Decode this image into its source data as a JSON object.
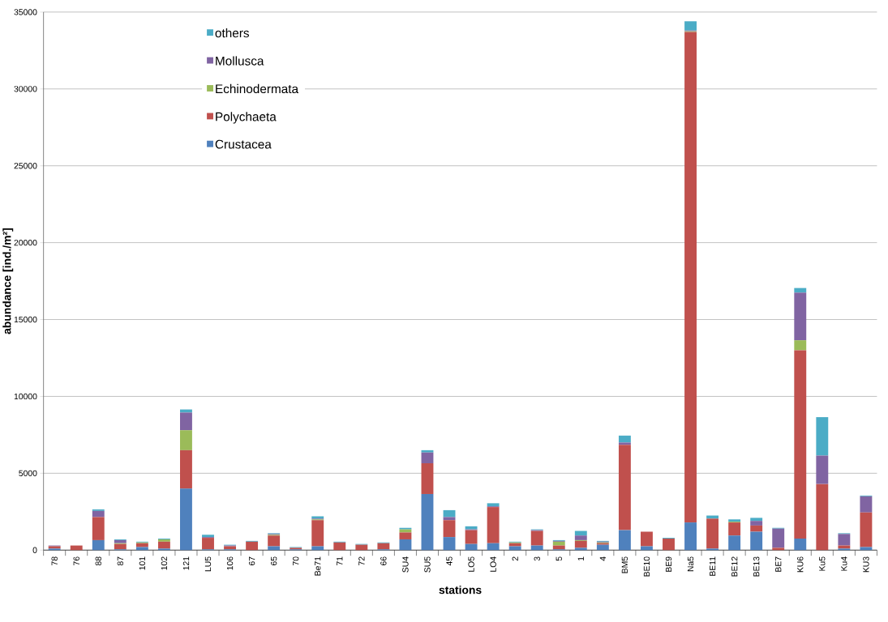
{
  "chart_data": {
    "type": "bar",
    "stacked": true,
    "xlabel": "stations",
    "ylabel": "abundance [ind./m²]",
    "categories": [
      "78",
      "76",
      "88",
      "87",
      "101",
      "102",
      "121",
      "LU5",
      "106",
      "67",
      "65",
      "70",
      "Be71",
      "71",
      "72",
      "66",
      "SU4",
      "SU5",
      "45",
      "LO5",
      "LO4",
      "2",
      "3",
      "5",
      "1",
      "4",
      "BM5",
      "BE10",
      "BE9",
      "Na5",
      "BE11",
      "BE12",
      "BE13",
      "BE7",
      "KU6",
      "Ku5",
      "Ku4",
      "KU3"
    ],
    "series": [
      {
        "name": "Crustacea",
        "color": "#4f81bd",
        "values": [
          100,
          0,
          650,
          50,
          200,
          100,
          4000,
          50,
          50,
          0,
          250,
          50,
          250,
          0,
          0,
          50,
          700,
          3650,
          850,
          400,
          450,
          250,
          300,
          50,
          150,
          350,
          1300,
          250,
          0,
          1800,
          100,
          950,
          1200,
          0,
          750,
          0,
          100,
          200
        ]
      },
      {
        "name": "Polychaeta",
        "color": "#c0504d",
        "values": [
          150,
          300,
          1500,
          350,
          250,
          450,
          2500,
          750,
          200,
          550,
          700,
          100,
          1700,
          500,
          350,
          400,
          450,
          2000,
          1100,
          900,
          2350,
          200,
          950,
          250,
          450,
          100,
          5550,
          950,
          750,
          31900,
          1950,
          850,
          400,
          150,
          12250,
          4300,
          200,
          2250
        ]
      },
      {
        "name": "Echinodermata",
        "color": "#9bbb59",
        "values": [
          0,
          0,
          0,
          50,
          50,
          150,
          1300,
          0,
          0,
          0,
          50,
          0,
          50,
          0,
          0,
          0,
          200,
          0,
          0,
          0,
          0,
          50,
          0,
          250,
          50,
          50,
          0,
          0,
          0,
          50,
          0,
          50,
          0,
          0,
          650,
          0,
          0,
          0
        ]
      },
      {
        "name": "Mollusca",
        "color": "#8064a2",
        "values": [
          50,
          0,
          400,
          200,
          0,
          0,
          1150,
          50,
          50,
          0,
          50,
          0,
          50,
          0,
          0,
          0,
          0,
          700,
          200,
          50,
          50,
          0,
          50,
          50,
          300,
          50,
          150,
          0,
          0,
          50,
          0,
          0,
          300,
          1250,
          3100,
          1850,
          750,
          1050
        ]
      },
      {
        "name": "others",
        "color": "#4bacc6",
        "values": [
          0,
          0,
          100,
          50,
          50,
          50,
          200,
          150,
          50,
          50,
          50,
          50,
          150,
          50,
          50,
          50,
          100,
          150,
          450,
          200,
          200,
          50,
          50,
          50,
          300,
          50,
          450,
          0,
          50,
          600,
          200,
          150,
          200,
          50,
          300,
          2500,
          50,
          50
        ]
      }
    ],
    "ylim": [
      0,
      35000
    ],
    "yticks": [
      0,
      5000,
      10000,
      15000,
      20000,
      25000,
      30000,
      35000
    ],
    "grid": "y",
    "legend": "top left"
  }
}
